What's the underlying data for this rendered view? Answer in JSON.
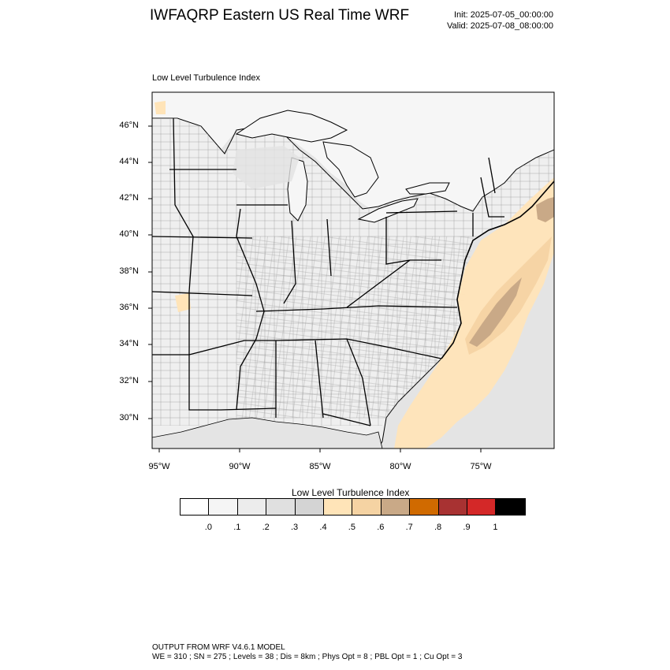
{
  "header": {
    "title": "IWFAQRP Eastern US Real Time WRF",
    "init": "Init: 2025-07-05_00:00:00",
    "valid": "Valid: 2025-07-08_08:00:00"
  },
  "map": {
    "field_title": "Low Level Turbulence Index",
    "lat_labels": [
      "46°N",
      "44°N",
      "42°N",
      "40°N",
      "38°N",
      "36°N",
      "34°N",
      "32°N",
      "30°N"
    ],
    "lon_labels": [
      "95°W",
      "90°W",
      "85°W",
      "80°W",
      "75°W"
    ],
    "colors": {
      "land": "#f4f4f4",
      "water": "#e6e6e6",
      "lake": "#f6f6f6",
      "light_tan": "#ffe4b8",
      "tan": "#f5d3a3",
      "dark_tan": "#c9a987"
    }
  },
  "colorbar": {
    "title": "Low Level Turbulence Index",
    "labels": [
      ".0",
      ".1",
      ".2",
      ".3",
      ".4",
      ".5",
      ".6",
      ".7",
      ".8",
      ".9",
      "1"
    ],
    "colors": [
      "#ffffff",
      "#f5f5f5",
      "#ececec",
      "#e0e0e0",
      "#d4d4d4",
      "#ffe4b8",
      "#f5d3a3",
      "#c9a987",
      "#d06a00",
      "#a83232",
      "#d42828",
      "#000000"
    ]
  },
  "footer": {
    "line1": "OUTPUT FROM WRF V4.6.1 MODEL",
    "line2": "WE = 310 ; SN = 275 ; Levels = 38 ; Dis = 8km ; Phys Opt = 8 ; PBL Opt = 1 ; Cu Opt = 3"
  }
}
